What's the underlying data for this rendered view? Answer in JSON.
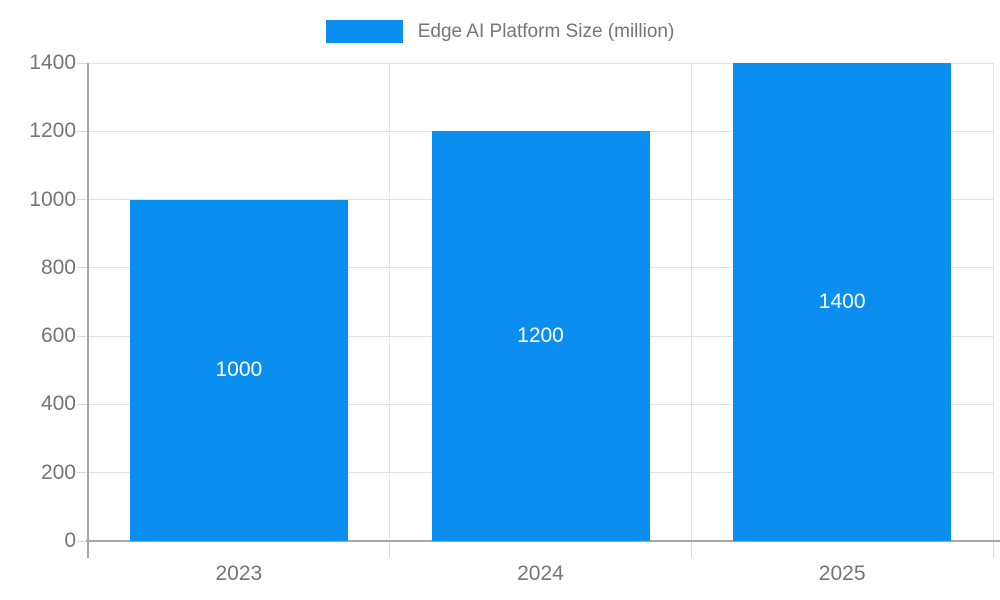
{
  "legend": {
    "label": "Edge AI Platform Size (million)"
  },
  "chart_data": {
    "type": "bar",
    "title": "",
    "xlabel": "",
    "ylabel": "",
    "categories": [
      "2023",
      "2024",
      "2025"
    ],
    "series": [
      {
        "name": "Edge AI Platform Size (million)",
        "values": [
          1000,
          1200,
          1400
        ],
        "color": "#0a8ff0"
      }
    ],
    "bar_labels": [
      "1000",
      "1200",
      "1400"
    ],
    "ylim": [
      0,
      1400
    ],
    "yticks": [
      0,
      200,
      400,
      600,
      800,
      1000,
      1200,
      1400
    ],
    "grid": "on",
    "legend_position": "top"
  },
  "colors": {
    "bar": "#0a8ff0",
    "bar_label_text": "#ffffff",
    "axis_text": "#757575",
    "axis_line": "#a6a6a6",
    "gridline": "#e2e2e2",
    "background": "#ffffff"
  }
}
